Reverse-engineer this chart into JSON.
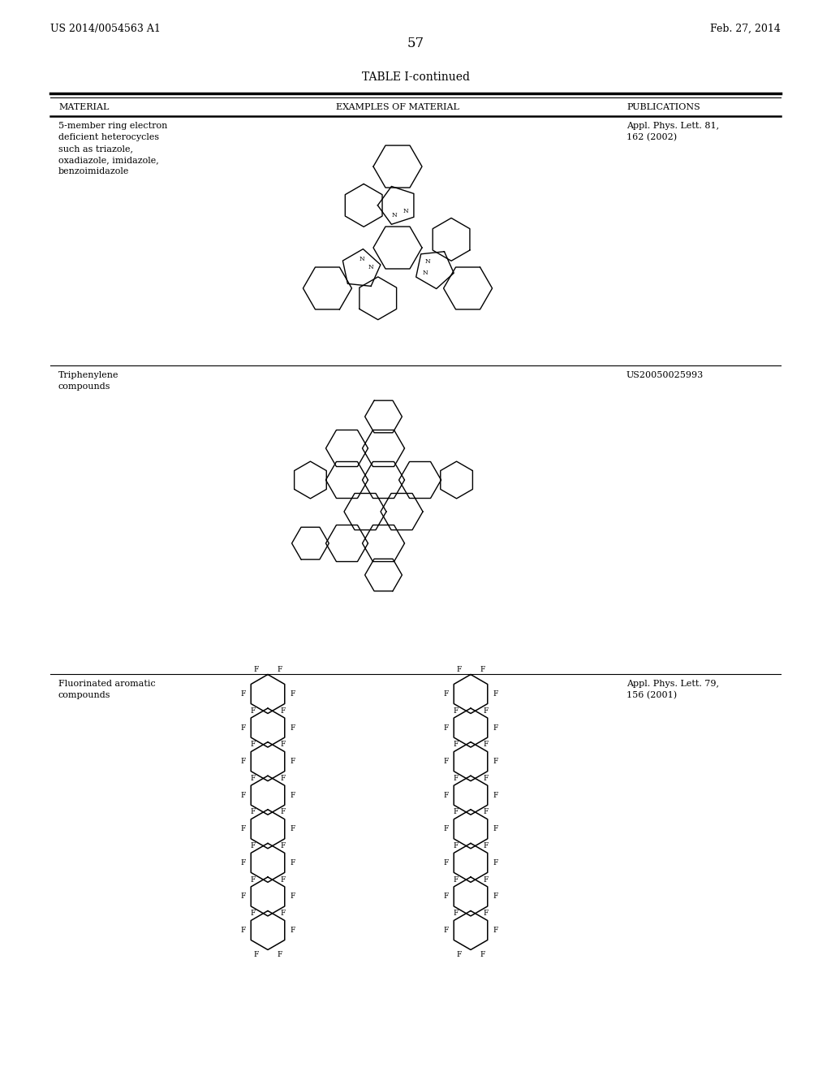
{
  "background_color": "#ffffff",
  "header_left": "US 2014/0054563 A1",
  "header_right": "Feb. 27, 2014",
  "page_number": "57",
  "table_title": "TABLE I-continued",
  "col_headers": [
    "MATERIAL",
    "EXAMPLES OF MATERIAL",
    "PUBLICATIONS"
  ],
  "row1_material": "5-member ring electron\ndeficient heterocycles\nsuch as triazole,\noxadiazole, imidazole,\nbenzoimidazole",
  "row1_publication": "Appl. Phys. Lett. 81,\n162 (2002)",
  "row2_material": "Triphenylene\ncompounds",
  "row2_publication": "US20050025993",
  "row3_material": "Fluorinated aromatic\ncompounds",
  "row3_publication": "Appl. Phys. Lett. 79,\n156 (2001)"
}
